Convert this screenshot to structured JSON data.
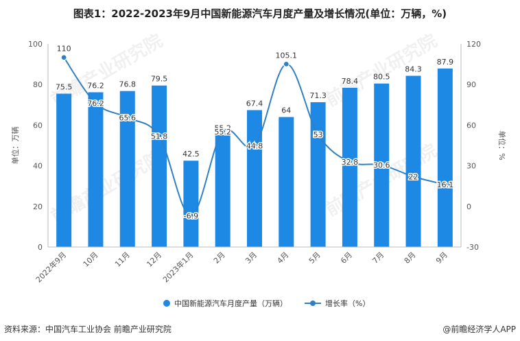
{
  "chart_data": {
    "type": "bar",
    "title": "图表1：2022-2023年9月中国新能源汽车月度产量及增长情况(单位：万辆，%)",
    "categories": [
      "2022年9月",
      "10月",
      "11月",
      "12月",
      "2023年1月",
      "2月",
      "3月",
      "4月",
      "5月",
      "6月",
      "7月",
      "8月",
      "9月"
    ],
    "series": [
      {
        "name": "中国新能源汽车月度产量（万辆）",
        "type": "bar",
        "axis": "left",
        "values": [
          75.5,
          76.2,
          76.8,
          79.5,
          42.5,
          55.2,
          67.4,
          64,
          71.3,
          78.4,
          80.5,
          84.3,
          87.9
        ]
      },
      {
        "name": "增长率（%）",
        "type": "line",
        "axis": "right",
        "values": [
          110,
          76.2,
          65.6,
          51.8,
          -6.9,
          55.2,
          44.8,
          105.1,
          53,
          32.8,
          30.6,
          22,
          16.1
        ]
      }
    ],
    "ylabel": "单位：万辆",
    "ylabel_right": "单位：%",
    "ylim": [
      0,
      100
    ],
    "yticks": [
      0,
      20,
      40,
      60,
      80,
      100
    ],
    "ylim_right": [
      -30,
      120
    ],
    "yticks_right": [
      -30,
      0,
      30,
      60,
      90,
      120
    ],
    "grid": false,
    "legend_position": "bottom",
    "colors": {
      "bar": "#1e88e5",
      "line": "#2f80c2"
    }
  },
  "footer": {
    "source": "资料来源：中国汽车工业协会 前瞻产业研究院",
    "credit": "@前瞻经济学人APP"
  },
  "watermark": "前瞻产业研究院"
}
